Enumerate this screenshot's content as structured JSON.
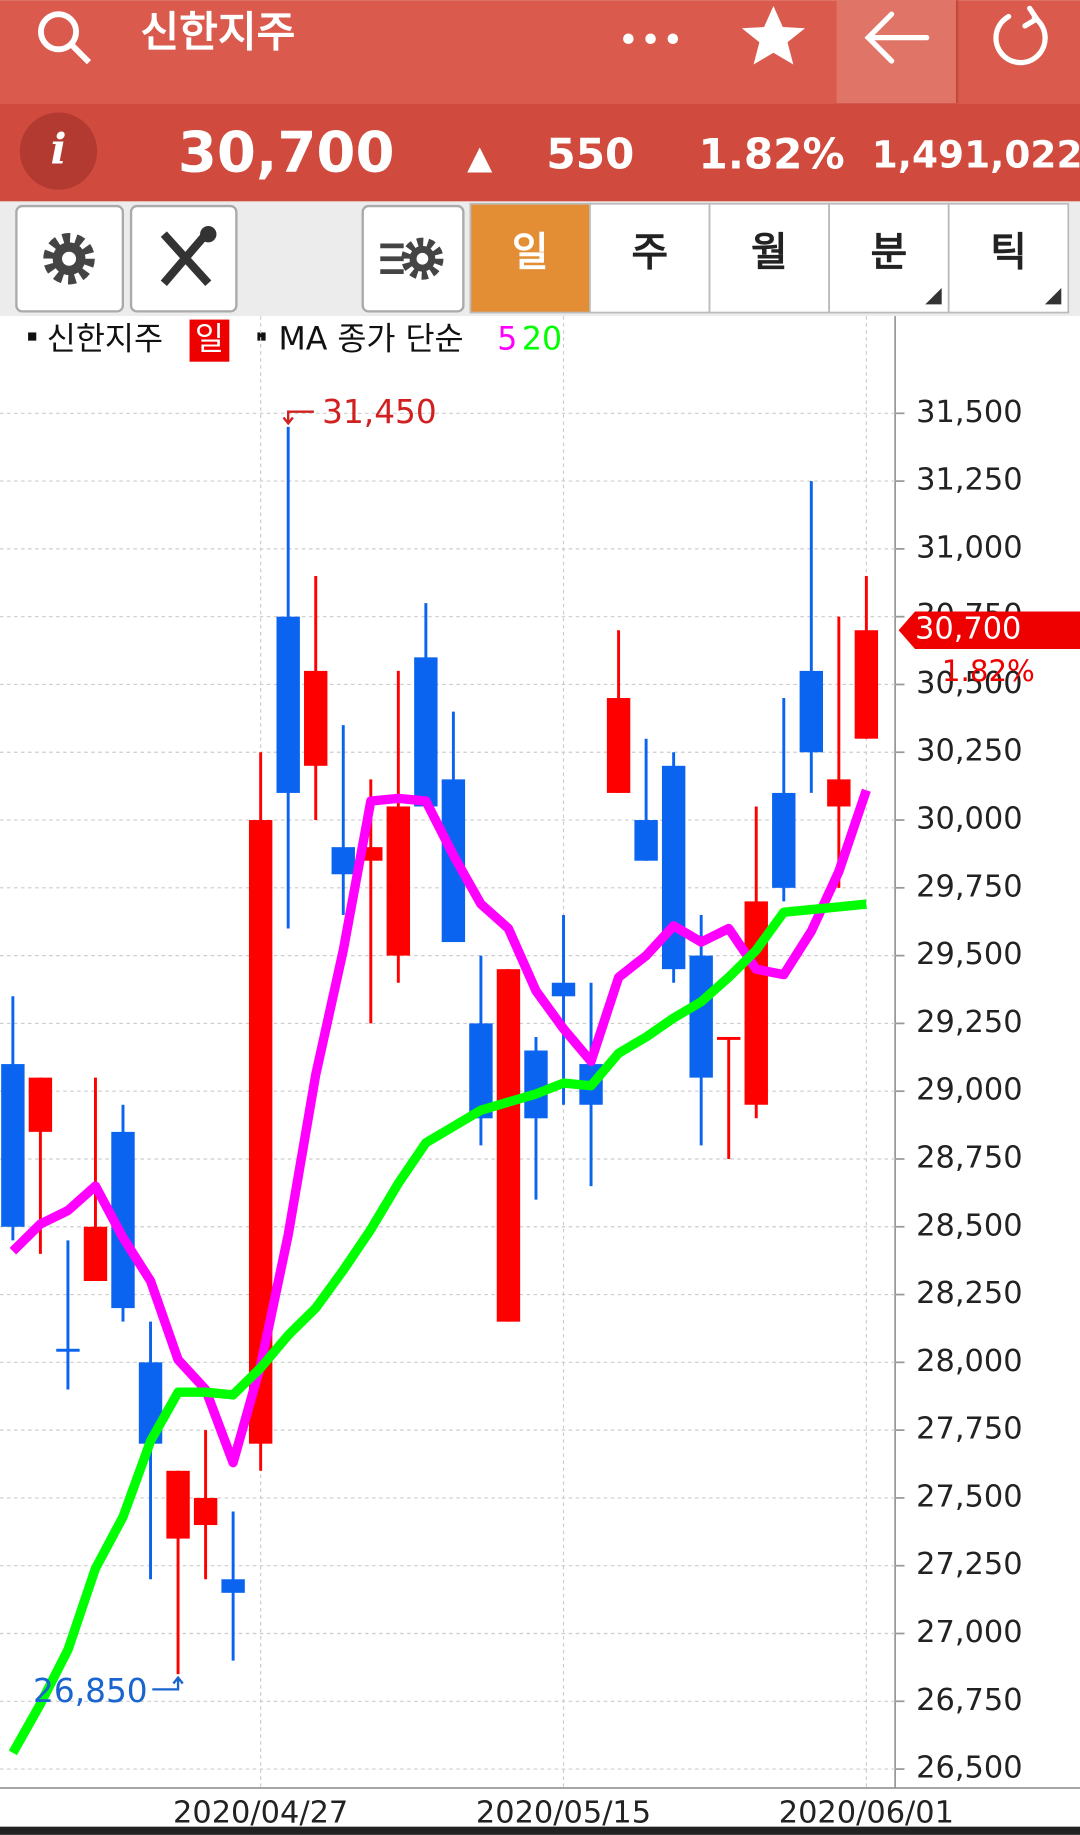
{
  "header": {
    "title": "신한지주",
    "price": "30,700",
    "arrow": "▲",
    "change": "550",
    "change_pct": "1.82%",
    "volume": "1,491,022"
  },
  "tabs": [
    "일",
    "주",
    "월",
    "분",
    "틱"
  ],
  "selected_tab": 0,
  "chart_data": {
    "type": "candlestick",
    "period_label": "일",
    "ma_label": "MA 종가 단순",
    "up_color": "#ff0000",
    "down_color": "#0a64f0",
    "categories": [
      null,
      null,
      null,
      null,
      null,
      null,
      null,
      null,
      null,
      "2020/04/27",
      null,
      null,
      null,
      null,
      null,
      null,
      null,
      null,
      null,
      null,
      "2020/05/15",
      null,
      null,
      null,
      null,
      null,
      null,
      null,
      null,
      null,
      null,
      "2020/06/01"
    ],
    "series": [
      {
        "name": "신한지주",
        "open": [
          29100,
          28850,
          28050,
          28300,
          28850,
          28000,
          27350,
          27400,
          27200,
          27700,
          30750,
          30200,
          29900,
          29850,
          29500,
          30600,
          30150,
          29250,
          28150,
          29150,
          29400,
          29100,
          30100,
          30000,
          30200,
          29500,
          29200,
          28950,
          30100,
          30550,
          30050,
          30300
        ],
        "high": [
          29350,
          29050,
          28450,
          29050,
          28950,
          28150,
          27600,
          27750,
          27450,
          30250,
          31450,
          30900,
          30350,
          30150,
          30550,
          30800,
          30400,
          29500,
          29450,
          29200,
          29650,
          29400,
          30700,
          30300,
          30250,
          29650,
          29200,
          30050,
          30450,
          31250,
          30750,
          30900
        ],
        "low": [
          28450,
          28400,
          27900,
          28300,
          28150,
          27200,
          26850,
          27200,
          26900,
          27600,
          29600,
          30000,
          29650,
          29250,
          29400,
          30050,
          29550,
          28800,
          28150,
          28600,
          28950,
          28650,
          30100,
          29850,
          29400,
          28800,
          28750,
          28900,
          29700,
          30100,
          29750,
          30300
        ],
        "close": [
          28500,
          29050,
          28050,
          28500,
          28200,
          27700,
          27600,
          27500,
          27150,
          30000,
          30100,
          30550,
          29800,
          29900,
          30050,
          30050,
          29550,
          28900,
          29450,
          28900,
          29350,
          28950,
          30450,
          29850,
          29450,
          29050,
          29200,
          29700,
          29750,
          30250,
          30150,
          30700
        ]
      },
      {
        "name": "5",
        "color": "#ff00ff",
        "values": [
          28410,
          28510,
          28560,
          28650,
          28460,
          28300,
          28010,
          27900,
          27630,
          27990,
          28470,
          29060,
          29520,
          30070,
          30080,
          30070,
          29870,
          29690,
          29600,
          29370,
          29230,
          29110,
          29420,
          29500,
          29610,
          29550,
          29600,
          29450,
          29430,
          29590,
          29810,
          30110
        ]
      },
      {
        "name": "20",
        "color": "#00ff00",
        "values": [
          26560,
          26740,
          26940,
          27240,
          27430,
          27710,
          27890,
          27890,
          27880,
          27980,
          28100,
          28200,
          28340,
          28490,
          28660,
          28810,
          28870,
          28930,
          28960,
          28990,
          29030,
          29020,
          29140,
          29200,
          29270,
          29330,
          29420,
          29520,
          29660,
          29670,
          29680,
          29690
        ]
      }
    ],
    "ylim": [
      26430,
      31850
    ],
    "yticks": [
      {
        "value": 26500,
        "label": "26,500"
      },
      {
        "value": 26750,
        "label": "26,750"
      },
      {
        "value": 27000,
        "label": "27,000"
      },
      {
        "value": 27250,
        "label": "27,250"
      },
      {
        "value": 27500,
        "label": "27,500"
      },
      {
        "value": 27750,
        "label": "27,750"
      },
      {
        "value": 28000,
        "label": "28,000"
      },
      {
        "value": 28250,
        "label": "28,250"
      },
      {
        "value": 28500,
        "label": "28,500"
      },
      {
        "value": 28750,
        "label": "28,750"
      },
      {
        "value": 29000,
        "label": "29,000"
      },
      {
        "value": 29250,
        "label": "29,250"
      },
      {
        "value": 29500,
        "label": "29,500"
      },
      {
        "value": 29750,
        "label": "29,750"
      },
      {
        "value": 30000,
        "label": "30,000"
      },
      {
        "value": 30250,
        "label": "30,250"
      },
      {
        "value": 30500,
        "label": "30,500"
      },
      {
        "value": 30750,
        "label": "30,750"
      },
      {
        "value": 31000,
        "label": "31,000"
      },
      {
        "value": 31250,
        "label": "31,250"
      },
      {
        "value": 31500,
        "label": "31,500"
      }
    ],
    "grid": true,
    "max_annotation": {
      "value": 31450,
      "label": "31,450"
    },
    "min_annotation": {
      "value": 26850,
      "label": "26,850"
    },
    "last_price": {
      "value": 30700,
      "label": "30,700"
    },
    "last_change_label": "1.82%"
  }
}
